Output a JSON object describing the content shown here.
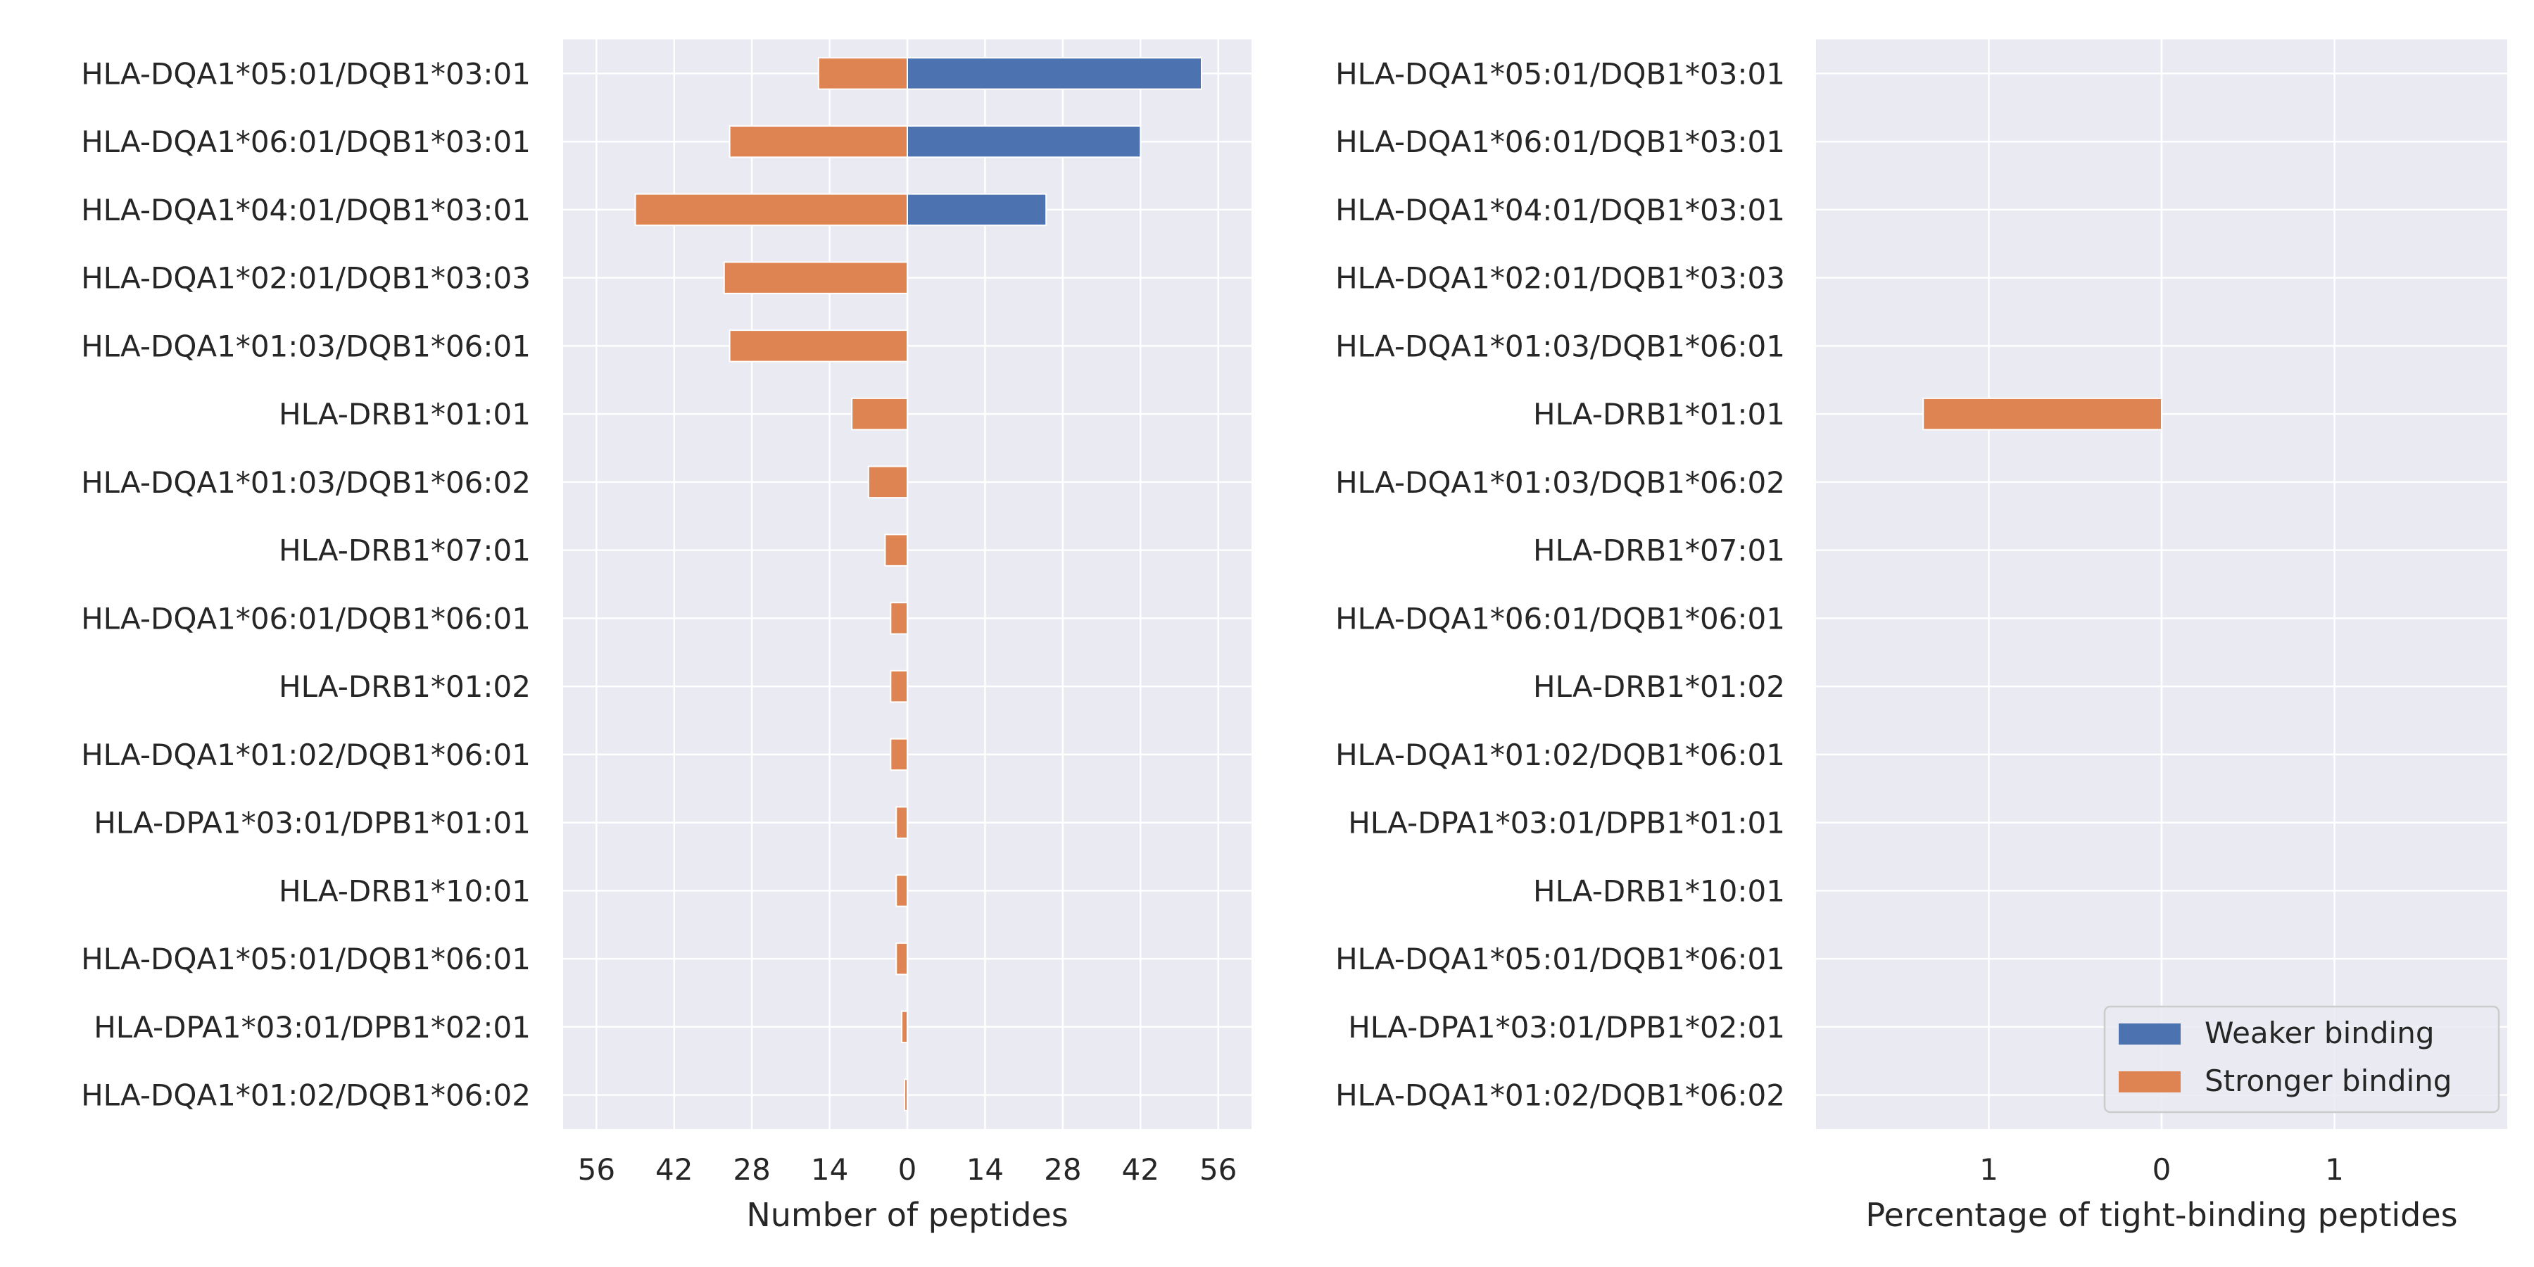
{
  "chart_data": [
    {
      "type": "bar",
      "orientation": "horizontal-diverging",
      "xlabel": "Number of peptides",
      "ylabel": "",
      "xlim": [
        -62,
        62
      ],
      "xticks": [
        -56,
        -42,
        -28,
        -14,
        0,
        14,
        28,
        42,
        56
      ],
      "xtick_labels": [
        "56",
        "42",
        "28",
        "14",
        "0",
        "14",
        "28",
        "42",
        "56"
      ],
      "grid": true,
      "categories": [
        "HLA-DQA1*05:01/DQB1*03:01",
        "HLA-DQA1*06:01/DQB1*03:01",
        "HLA-DQA1*04:01/DQB1*03:01",
        "HLA-DQA1*02:01/DQB1*03:03",
        "HLA-DQA1*01:03/DQB1*06:01",
        "HLA-DRB1*01:01",
        "HLA-DQA1*01:03/DQB1*06:02",
        "HLA-DRB1*07:01",
        "HLA-DQA1*06:01/DQB1*06:01",
        "HLA-DRB1*01:02",
        "HLA-DQA1*01:02/DQB1*06:01",
        "HLA-DPA1*03:01/DPB1*01:01",
        "HLA-DRB1*10:01",
        "HLA-DQA1*05:01/DQB1*06:01",
        "HLA-DPA1*03:01/DPB1*02:01",
        "HLA-DQA1*01:02/DQB1*06:02"
      ],
      "series": [
        {
          "name": "Weaker binding",
          "color": "#4c72b0",
          "direction": "right",
          "values": [
            53,
            42,
            25,
            0,
            0,
            0,
            0,
            0,
            0,
            0,
            0,
            0,
            0,
            0,
            0,
            0
          ]
        },
        {
          "name": "Stronger binding",
          "color": "#dd8452",
          "direction": "left",
          "values": [
            16,
            32,
            49,
            33,
            32,
            10,
            7,
            4,
            3,
            3,
            3,
            2,
            2,
            2,
            1,
            0.5
          ]
        }
      ]
    },
    {
      "type": "bar",
      "orientation": "horizontal-diverging",
      "xlabel": "Percentage of tight-binding peptides",
      "ylabel": "",
      "xlim": [
        -2,
        2
      ],
      "xticks": [
        -1,
        0,
        1
      ],
      "xtick_labels": [
        "1",
        "0",
        "1"
      ],
      "grid": true,
      "categories": [
        "HLA-DQA1*05:01/DQB1*03:01",
        "HLA-DQA1*06:01/DQB1*03:01",
        "HLA-DQA1*04:01/DQB1*03:01",
        "HLA-DQA1*02:01/DQB1*03:03",
        "HLA-DQA1*01:03/DQB1*06:01",
        "HLA-DRB1*01:01",
        "HLA-DQA1*01:03/DQB1*06:02",
        "HLA-DRB1*07:01",
        "HLA-DQA1*06:01/DQB1*06:01",
        "HLA-DRB1*01:02",
        "HLA-DQA1*01:02/DQB1*06:01",
        "HLA-DPA1*03:01/DPB1*01:01",
        "HLA-DRB1*10:01",
        "HLA-DQA1*05:01/DQB1*06:01",
        "HLA-DPA1*03:01/DPB1*02:01",
        "HLA-DQA1*01:02/DQB1*06:02"
      ],
      "series": [
        {
          "name": "Weaker binding",
          "color": "#4c72b0",
          "direction": "right",
          "values": [
            0,
            0,
            0,
            0,
            0,
            0,
            0,
            0,
            0,
            0,
            0,
            0,
            0,
            0,
            0,
            0
          ]
        },
        {
          "name": "Stronger binding",
          "color": "#dd8452",
          "direction": "left",
          "values": [
            0,
            0,
            0,
            0,
            0,
            1.38,
            0,
            0,
            0,
            0,
            0,
            0,
            0,
            0,
            0,
            0
          ]
        }
      ],
      "legend": {
        "placement": "bottom-right",
        "entries": [
          {
            "label": "Weaker binding",
            "color": "#4c72b0"
          },
          {
            "label": "Stronger binding",
            "color": "#dd8452"
          }
        ]
      }
    }
  ],
  "style": {
    "plot_background": "#eaeaf2",
    "grid_color": "#ffffff",
    "bar_edge_color": "#ffffff",
    "text_color": "#262626"
  }
}
